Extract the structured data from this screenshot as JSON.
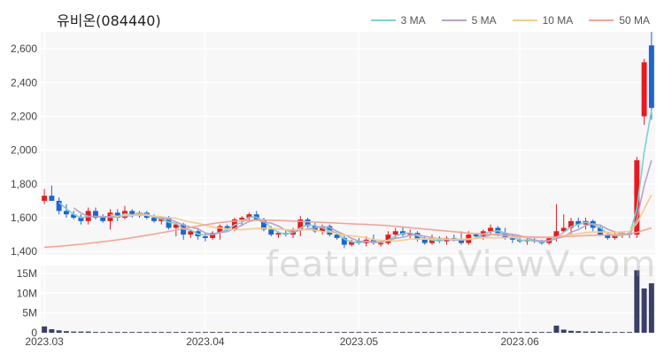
{
  "title": "유비온(084440)",
  "watermark": "feature.enViewV.com",
  "legend": [
    {
      "label": "3 MA",
      "color": "#7fd0d0"
    },
    {
      "label": "5 MA",
      "color": "#b9a2cc"
    },
    {
      "label": "10 MA",
      "color": "#f2cd8c"
    },
    {
      "label": "50 MA",
      "color": "#f4a497"
    }
  ],
  "colors": {
    "up": "#e8191f",
    "down": "#1e66cc",
    "volume": "#3a3f66",
    "grid": "#e9e9e9"
  },
  "chart_data": {
    "type": "candlestick",
    "price_axis": {
      "ylim": [
        1380,
        2700
      ],
      "ticks": [
        "1,400",
        "1,600",
        "1,800",
        "2,000",
        "2,200",
        "2,400",
        "2,600"
      ],
      "tick_values": [
        1400,
        1600,
        1800,
        2000,
        2200,
        2400,
        2600
      ]
    },
    "volume_axis": {
      "ylim": [
        0,
        17
      ],
      "ticks": [
        "0",
        "5M",
        "10M",
        "15M"
      ],
      "tick_values": [
        0,
        5,
        10,
        15
      ],
      "unit": "M"
    },
    "x_labels": [
      {
        "label": "2023.03",
        "index": 0
      },
      {
        "label": "2023.04",
        "index": 22
      },
      {
        "label": "2023.05",
        "index": 43
      },
      {
        "label": "2023.06",
        "index": 65
      }
    ],
    "ohlc": [
      [
        1700,
        1770,
        1680,
        1730
      ],
      [
        1730,
        1790,
        1700,
        1700
      ],
      [
        1700,
        1720,
        1620,
        1640
      ],
      [
        1640,
        1680,
        1600,
        1620
      ],
      [
        1620,
        1640,
        1590,
        1600
      ],
      [
        1600,
        1620,
        1560,
        1580
      ],
      [
        1580,
        1660,
        1560,
        1640
      ],
      [
        1640,
        1660,
        1590,
        1600
      ],
      [
        1600,
        1620,
        1570,
        1580
      ],
      [
        1580,
        1650,
        1530,
        1630
      ],
      [
        1630,
        1650,
        1580,
        1600
      ],
      [
        1600,
        1670,
        1590,
        1640
      ],
      [
        1640,
        1650,
        1600,
        1610
      ],
      [
        1610,
        1640,
        1600,
        1630
      ],
      [
        1630,
        1640,
        1590,
        1600
      ],
      [
        1600,
        1620,
        1570,
        1580
      ],
      [
        1580,
        1610,
        1560,
        1600
      ],
      [
        1600,
        1610,
        1530,
        1540
      ],
      [
        1540,
        1570,
        1490,
        1560
      ],
      [
        1560,
        1570,
        1470,
        1500
      ],
      [
        1500,
        1530,
        1480,
        1520
      ],
      [
        1520,
        1540,
        1470,
        1490
      ],
      [
        1490,
        1510,
        1460,
        1480
      ],
      [
        1480,
        1520,
        1470,
        1510
      ],
      [
        1510,
        1560,
        1470,
        1550
      ],
      [
        1550,
        1560,
        1520,
        1530
      ],
      [
        1530,
        1600,
        1520,
        1590
      ],
      [
        1590,
        1610,
        1550,
        1600
      ],
      [
        1600,
        1630,
        1580,
        1620
      ],
      [
        1620,
        1640,
        1580,
        1590
      ],
      [
        1590,
        1600,
        1520,
        1530
      ],
      [
        1530,
        1550,
        1490,
        1500
      ],
      [
        1500,
        1520,
        1480,
        1510
      ],
      [
        1510,
        1530,
        1490,
        1500
      ],
      [
        1500,
        1540,
        1480,
        1530
      ],
      [
        1530,
        1610,
        1490,
        1590
      ],
      [
        1590,
        1600,
        1540,
        1550
      ],
      [
        1550,
        1570,
        1510,
        1520
      ],
      [
        1520,
        1560,
        1500,
        1550
      ],
      [
        1550,
        1560,
        1490,
        1500
      ],
      [
        1500,
        1510,
        1470,
        1480
      ],
      [
        1480,
        1500,
        1420,
        1440
      ],
      [
        1440,
        1470,
        1430,
        1460
      ],
      [
        1460,
        1480,
        1440,
        1450
      ],
      [
        1450,
        1490,
        1430,
        1470
      ],
      [
        1470,
        1500,
        1440,
        1450
      ],
      [
        1450,
        1470,
        1430,
        1450
      ],
      [
        1450,
        1520,
        1440,
        1500
      ],
      [
        1500,
        1540,
        1480,
        1520
      ],
      [
        1520,
        1550,
        1490,
        1500
      ],
      [
        1500,
        1530,
        1480,
        1510
      ],
      [
        1510,
        1520,
        1460,
        1470
      ],
      [
        1470,
        1490,
        1440,
        1450
      ],
      [
        1450,
        1500,
        1440,
        1480
      ],
      [
        1480,
        1490,
        1450,
        1460
      ],
      [
        1460,
        1490,
        1440,
        1480
      ],
      [
        1480,
        1500,
        1460,
        1470
      ],
      [
        1470,
        1520,
        1440,
        1450
      ],
      [
        1450,
        1520,
        1440,
        1500
      ],
      [
        1500,
        1510,
        1480,
        1490
      ],
      [
        1490,
        1530,
        1470,
        1520
      ],
      [
        1520,
        1560,
        1500,
        1540
      ],
      [
        1540,
        1550,
        1490,
        1510
      ],
      [
        1510,
        1540,
        1470,
        1480
      ],
      [
        1480,
        1500,
        1450,
        1470
      ],
      [
        1470,
        1490,
        1450,
        1460
      ],
      [
        1460,
        1480,
        1440,
        1470
      ],
      [
        1470,
        1490,
        1450,
        1460
      ],
      [
        1460,
        1470,
        1440,
        1450
      ],
      [
        1450,
        1490,
        1440,
        1480
      ],
      [
        1480,
        1680,
        1460,
        1520
      ],
      [
        1520,
        1620,
        1510,
        1540
      ],
      [
        1540,
        1600,
        1500,
        1580
      ],
      [
        1580,
        1600,
        1540,
        1560
      ],
      [
        1560,
        1600,
        1530,
        1580
      ],
      [
        1580,
        1590,
        1520,
        1540
      ],
      [
        1540,
        1560,
        1490,
        1500
      ],
      [
        1500,
        1510,
        1470,
        1480
      ],
      [
        1480,
        1510,
        1470,
        1500
      ],
      [
        1500,
        1520,
        1480,
        1510
      ],
      [
        1510,
        1520,
        1480,
        1500
      ],
      [
        1500,
        1960,
        1480,
        1940
      ],
      [
        2200,
        2540,
        2150,
        2520
      ],
      [
        2620,
        2700,
        2180,
        2250
      ]
    ],
    "volume": [
      1.6,
      0.9,
      0.6,
      0.4,
      0.3,
      0.3,
      0.3,
      0.2,
      0.2,
      0.2,
      0.2,
      0.2,
      0.2,
      0.2,
      0.2,
      0.2,
      0.2,
      0.2,
      0.2,
      0.2,
      0.2,
      0.2,
      0.2,
      0.2,
      0.2,
      0.2,
      0.2,
      0.2,
      0.2,
      0.2,
      0.2,
      0.2,
      0.2,
      0.2,
      0.2,
      0.2,
      0.2,
      0.2,
      0.2,
      0.2,
      0.2,
      0.2,
      0.2,
      0.2,
      0.2,
      0.2,
      0.2,
      0.2,
      0.2,
      0.2,
      0.2,
      0.2,
      0.2,
      0.2,
      0.2,
      0.2,
      0.2,
      0.2,
      0.2,
      0.2,
      0.2,
      0.2,
      0.2,
      0.2,
      0.2,
      0.2,
      0.2,
      0.2,
      0.2,
      0.2,
      1.8,
      0.8,
      0.5,
      0.4,
      0.3,
      0.3,
      0.3,
      0.2,
      0.2,
      0.2,
      0.2,
      15.8,
      11.2,
      12.5
    ],
    "series": [
      {
        "name": "3 MA",
        "values": [
          null,
          null,
          1690,
          1653,
          1620,
          1600,
          1607,
          1607,
          1607,
          1603,
          1603,
          1623,
          1617,
          1627,
          1613,
          1603,
          1593,
          1573,
          1567,
          1533,
          1527,
          1503,
          1497,
          1503,
          1513,
          1530,
          1557,
          1573,
          1603,
          1603,
          1580,
          1540,
          1513,
          1503,
          1513,
          1540,
          1557,
          1553,
          1540,
          1523,
          1510,
          1473,
          1457,
          1450,
          1460,
          1457,
          1457,
          1467,
          1490,
          1507,
          1510,
          1493,
          1477,
          1467,
          1463,
          1473,
          1470,
          1467,
          1473,
          1480,
          1503,
          1517,
          1523,
          1510,
          1487,
          1467,
          1467,
          1463,
          1457,
          1463,
          1483,
          1513,
          1547,
          1560,
          1573,
          1560,
          1540,
          1507,
          1493,
          1497,
          1503,
          1650,
          1987,
          2237
        ]
      },
      {
        "name": "5 MA",
        "values": [
          null,
          null,
          null,
          null,
          1658,
          1628,
          1608,
          1608,
          1604,
          1606,
          1608,
          1610,
          1612,
          1618,
          1622,
          1604,
          1602,
          1590,
          1576,
          1556,
          1544,
          1534,
          1510,
          1500,
          1512,
          1518,
          1536,
          1556,
          1578,
          1588,
          1574,
          1568,
          1550,
          1526,
          1514,
          1526,
          1534,
          1540,
          1548,
          1542,
          1520,
          1500,
          1478,
          1460,
          1460,
          1454,
          1456,
          1464,
          1478,
          1484,
          1496,
          1500,
          1490,
          1482,
          1474,
          1470,
          1468,
          1468,
          1470,
          1480,
          1486,
          1498,
          1506,
          1506,
          1502,
          1494,
          1480,
          1466,
          1462,
          1464,
          1476,
          1488,
          1514,
          1530,
          1554,
          1564,
          1556,
          1532,
          1516,
          1506,
          1498,
          1590,
          1790,
          1940
        ]
      },
      {
        "name": "10 MA",
        "values": [
          null,
          null,
          null,
          null,
          null,
          null,
          null,
          null,
          null,
          1618,
          1608,
          1616,
          1614,
          1615,
          1615,
          1610,
          1606,
          1600,
          1597,
          1584,
          1574,
          1567,
          1556,
          1544,
          1539,
          1534,
          1530,
          1529,
          1533,
          1536,
          1538,
          1536,
          1533,
          1529,
          1527,
          1531,
          1529,
          1526,
          1519,
          1516,
          1507,
          1497,
          1493,
          1488,
          1482,
          1470,
          1466,
          1464,
          1462,
          1467,
          1473,
          1475,
          1474,
          1475,
          1474,
          1474,
          1473,
          1473,
          1475,
          1478,
          1481,
          1481,
          1481,
          1481,
          1482,
          1484,
          1483,
          1483,
          1482,
          1482,
          1486,
          1494,
          1500,
          1505,
          1512,
          1515,
          1516,
          1514,
          1513,
          1516,
          1519,
          1566,
          1652,
          1735
        ]
      },
      {
        "name": "50 MA",
        "values": [
          1425,
          1428,
          1431,
          1435,
          1439,
          1443,
          1448,
          1453,
          1458,
          1463,
          1469,
          1475,
          1482,
          1489,
          1496,
          1503,
          1511,
          1519,
          1527,
          1535,
          1543,
          1551,
          1558,
          1565,
          1571,
          1576,
          1580,
          1583,
          1585,
          1586,
          1586,
          1585,
          1584,
          1582,
          1580,
          1578,
          1576,
          1574,
          1572,
          1570,
          1568,
          1566,
          1564,
          1562,
          1560,
          1558,
          1556,
          1553,
          1549,
          1545,
          1541,
          1537,
          1533,
          1529,
          1525,
          1521,
          1517,
          1513,
          1509,
          1506,
          1503,
          1500,
          1497,
          1494,
          1491,
          1489,
          1487,
          1486,
          1485,
          1485,
          1486,
          1488,
          1490,
          1492,
          1494,
          1496,
          1497,
          1498,
          1500,
          1502,
          1505,
          1513,
          1526,
          1540
        ]
      }
    ]
  }
}
